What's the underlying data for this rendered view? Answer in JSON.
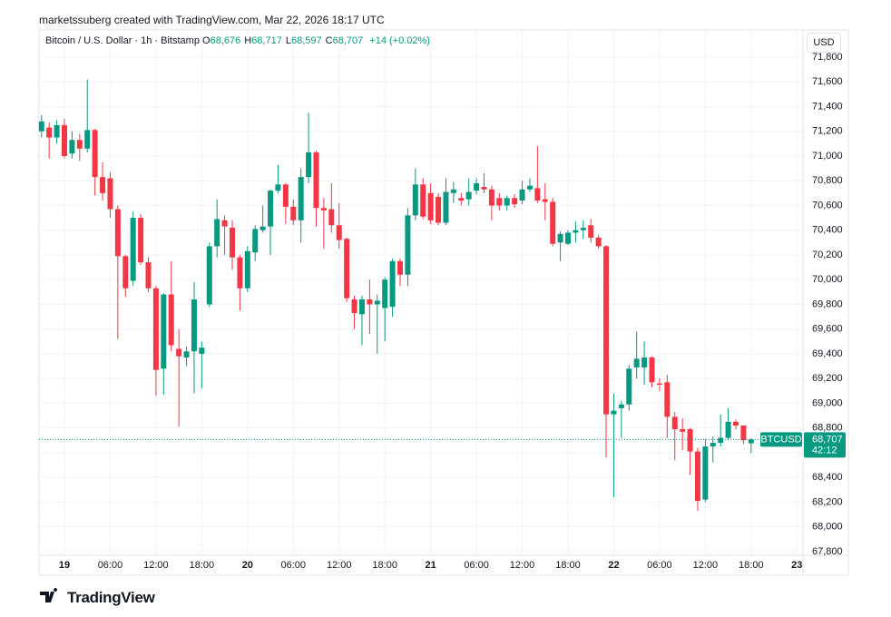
{
  "header": {
    "credit": "marketssuberg created with TradingView.com, Mar 22, 2026 18:17 UTC",
    "logo": "TradingView"
  },
  "chart_data": {
    "type": "candlestick",
    "title": "Bitcoin / U.S. Dollar · 1h · Bitstamp",
    "ohlc_legend": [
      {
        "key": "O",
        "value": 68676,
        "label": "68,676"
      },
      {
        "key": "H",
        "value": 68717,
        "label": "68,717"
      },
      {
        "key": "L",
        "value": 68597,
        "label": "68,597"
      },
      {
        "key": "C",
        "value": 68707,
        "label": "68,707"
      }
    ],
    "change_label": "+14 (+0.02%)",
    "currency": "USD",
    "up_color": "#089981",
    "down_color": "#f23645",
    "last_price": {
      "symbol": "BTCUSD",
      "value": 68707,
      "label": "68,707",
      "countdown": "42:12"
    },
    "x": [
      -3,
      -2,
      -1,
      0,
      1,
      2,
      3,
      4,
      5,
      6,
      7,
      8,
      9,
      10,
      11,
      12,
      13,
      14,
      15,
      16,
      17,
      18,
      19,
      20,
      21,
      22,
      23,
      24,
      25,
      26,
      27,
      28,
      29,
      30,
      31,
      32,
      33,
      34,
      35,
      36,
      37,
      38,
      39,
      40,
      41,
      42,
      43,
      44,
      45,
      46,
      47,
      48,
      49,
      50,
      51,
      52,
      53,
      54,
      55,
      56,
      57,
      58,
      59,
      60,
      61,
      62,
      63,
      64,
      65,
      66,
      67,
      68,
      69,
      70,
      71,
      72,
      73,
      74,
      75,
      76,
      77,
      78,
      79,
      80,
      81,
      82,
      83,
      84,
      85,
      86,
      87,
      88,
      89,
      90
    ],
    "open": [
      71200,
      71230,
      71150,
      71250,
      71020,
      71130,
      71060,
      71210,
      70830,
      70820,
      70570,
      70190,
      69990,
      70500,
      70140,
      69930,
      69280,
      69880,
      69440,
      69370,
      69420,
      69400,
      69800,
      70270,
      70480,
      70420,
      70180,
      69930,
      70220,
      70400,
      70430,
      70720,
      70770,
      70590,
      70480,
      70830,
      71030,
      70580,
      70570,
      70440,
      70330,
      69840,
      69720,
      69840,
      69800,
      69770,
      69780,
      70150,
      70040,
      70520,
      70770,
      70700,
      70670,
      70460,
      70700,
      70660,
      70650,
      70720,
      70750,
      70730,
      70660,
      70600,
      70660,
      70640,
      70730,
      70740,
      70650,
      70630,
      70300,
      70290,
      70380,
      70400,
      70440,
      70340,
      70270,
      68910,
      68960,
      68990,
      69290,
      69290,
      69370,
      69160,
      69170,
      68890,
      68790,
      68790,
      68610,
      68220,
      68650,
      68680,
      68720,
      68850,
      68820,
      68676
    ],
    "high": [
      71330,
      71270,
      71290,
      71300,
      71200,
      71180,
      71620,
      71220,
      70950,
      70870,
      70600,
      70200,
      70550,
      70530,
      70180,
      69950,
      69890,
      70150,
      69600,
      69460,
      69980,
      69500,
      70300,
      70650,
      70520,
      70480,
      70200,
      70270,
      70440,
      70600,
      70730,
      70930,
      70780,
      70650,
      70900,
      71350,
      71040,
      70660,
      70780,
      70620,
      70340,
      69870,
      69870,
      70000,
      69880,
      70020,
      70170,
      70170,
      70580,
      70900,
      70820,
      70780,
      70700,
      70820,
      70790,
      70700,
      70820,
      70820,
      70860,
      70760,
      70700,
      70680,
      70690,
      70800,
      70820,
      71080,
      70780,
      70660,
      70390,
      70400,
      70470,
      70480,
      70490,
      70360,
      70280,
      69080,
      69020,
      69310,
      69580,
      69500,
      69380,
      69200,
      69230,
      68930,
      68880,
      68800,
      68640,
      68710,
      68730,
      68910,
      68960,
      68870,
      68820,
      68717
    ],
    "low": [
      71150,
      70980,
      71100,
      70980,
      70980,
      70960,
      71030,
      70680,
      70640,
      70500,
      69520,
      69860,
      69950,
      70120,
      69900,
      69060,
      69070,
      69420,
      68810,
      69300,
      69080,
      69120,
      69780,
      70180,
      70200,
      70080,
      69750,
      69900,
      70150,
      70380,
      70200,
      70700,
      70450,
      70440,
      70300,
      70780,
      70430,
      70250,
      70380,
      70250,
      69820,
      69600,
      69470,
      69560,
      69400,
      69500,
      69700,
      69950,
      69950,
      70480,
      70490,
      70450,
      70440,
      70440,
      70620,
      70600,
      70600,
      70690,
      70700,
      70480,
      70560,
      70560,
      70580,
      70610,
      70710,
      70620,
      70480,
      70270,
      70150,
      70280,
      70300,
      70330,
      70300,
      70250,
      68560,
      68240,
      68720,
      68940,
      69200,
      69150,
      69130,
      69100,
      68720,
      68540,
      68620,
      68420,
      68130,
      68200,
      68520,
      68650,
      68700,
      68790,
      68670,
      68597
    ],
    "close": [
      71280,
      71150,
      71250,
      71000,
      71130,
      71060,
      71210,
      70830,
      70700,
      70570,
      70190,
      69930,
      70500,
      70140,
      69930,
      69270,
      69880,
      69470,
      69380,
      69420,
      69840,
      69450,
      70270,
      70490,
      70430,
      70180,
      69930,
      70230,
      70410,
      70430,
      70720,
      70770,
      70590,
      70480,
      70830,
      71030,
      70580,
      70560,
      70440,
      70320,
      69850,
      69730,
      69840,
      69800,
      69830,
      70000,
      70150,
      70040,
      70520,
      70770,
      70510,
      70480,
      70460,
      70710,
      70730,
      70640,
      70710,
      70780,
      70730,
      70600,
      70600,
      70660,
      70610,
      70730,
      70760,
      70640,
      70630,
      70290,
      70370,
      70380,
      70400,
      70420,
      70340,
      70270,
      68910,
      68940,
      68990,
      69280,
      69360,
      69370,
      69170,
      69150,
      68890,
      68790,
      68770,
      68610,
      68210,
      68650,
      68680,
      68720,
      68850,
      68820,
      68700,
      68707
    ],
    "xlim": [
      -3.33,
      96.8
    ],
    "xticks": [
      {
        "value": 0,
        "label": "19"
      },
      {
        "value": 6,
        "label": "06:00"
      },
      {
        "value": 12,
        "label": "12:00"
      },
      {
        "value": 18,
        "label": "18:00"
      },
      {
        "value": 24,
        "label": "20"
      },
      {
        "value": 30,
        "label": "06:00"
      },
      {
        "value": 36,
        "label": "12:00"
      },
      {
        "value": 42,
        "label": "18:00"
      },
      {
        "value": 48,
        "label": "21"
      },
      {
        "value": 54,
        "label": "06:00"
      },
      {
        "value": 60,
        "label": "12:00"
      },
      {
        "value": 66,
        "label": "18:00"
      },
      {
        "value": 72,
        "label": "22"
      },
      {
        "value": 78,
        "label": "06:00"
      },
      {
        "value": 84,
        "label": "12:00"
      },
      {
        "value": 90,
        "label": "18:00"
      },
      {
        "value": 96,
        "label": "23"
      }
    ],
    "ylim": [
      67770,
      72020
    ],
    "yticks": [
      {
        "value": 67800,
        "label": "67,800"
      },
      {
        "value": 68000,
        "label": "68,000"
      },
      {
        "value": 68200,
        "label": "68,200"
      },
      {
        "value": 68400,
        "label": "68,400"
      },
      {
        "value": 68600,
        "label": "68,600"
      },
      {
        "value": 68800,
        "label": "68,800"
      },
      {
        "value": 69000,
        "label": "69,000"
      },
      {
        "value": 69200,
        "label": "69,200"
      },
      {
        "value": 69400,
        "label": "69,400"
      },
      {
        "value": 69600,
        "label": "69,600"
      },
      {
        "value": 69800,
        "label": "69,800"
      },
      {
        "value": 70000,
        "label": "70,000"
      },
      {
        "value": 70200,
        "label": "70,200"
      },
      {
        "value": 70400,
        "label": "70,400"
      },
      {
        "value": 70600,
        "label": "70,600"
      },
      {
        "value": 70800,
        "label": "70,800"
      },
      {
        "value": 71000,
        "label": "71,000"
      },
      {
        "value": 71200,
        "label": "71,200"
      },
      {
        "value": 71400,
        "label": "71,400"
      },
      {
        "value": 71600,
        "label": "71,600"
      },
      {
        "value": 71800,
        "label": "71,800"
      }
    ],
    "grid": true
  }
}
